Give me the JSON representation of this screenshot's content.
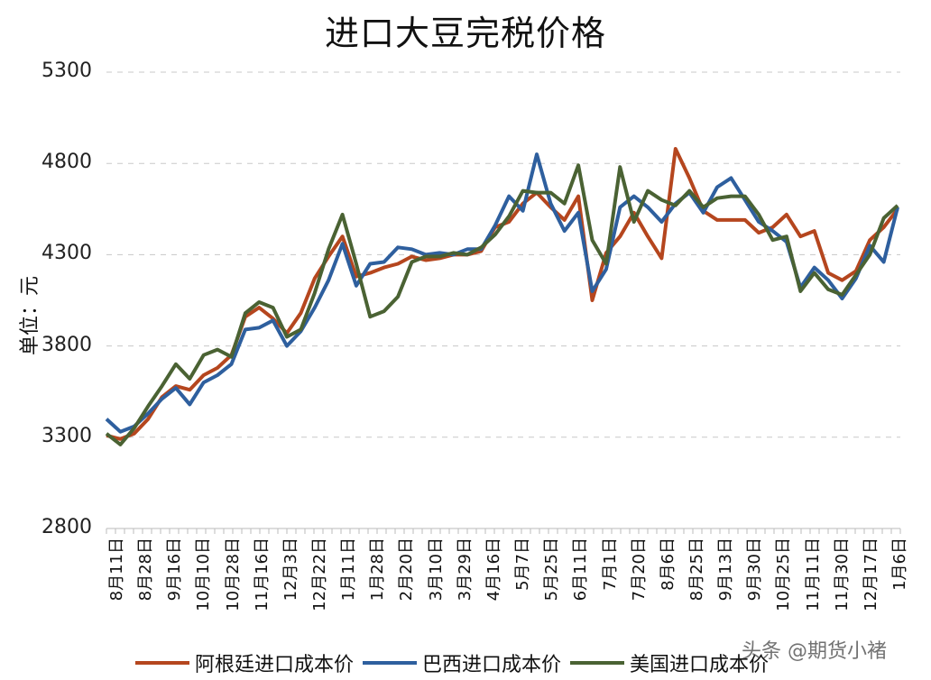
{
  "title": "进口大豆完税价格",
  "y_axis_label": "单位：元",
  "watermark": "头条 @期货小褚",
  "legend": [
    {
      "label": "阿根廷进口成本价",
      "color": "#b5461e"
    },
    {
      "label": "巴西进口成本价",
      "color": "#2e5f9e"
    },
    {
      "label": "美国进口成本价",
      "color": "#4a6233"
    }
  ],
  "chart_data": {
    "type": "line",
    "title": "进口大豆完税价格",
    "xlabel": "",
    "ylabel": "单位：元",
    "ylim": [
      2800,
      5300
    ],
    "yticks": [
      2800,
      3300,
      3800,
      4300,
      4800,
      5300
    ],
    "grid": "horizontal dashed",
    "legend_position": "bottom",
    "categories": [
      "8月11日",
      "8月28日",
      "9月16日",
      "10月10日",
      "10月28日",
      "11月16日",
      "12月3日",
      "12月22日",
      "1月11日",
      "1月28日",
      "2月20日",
      "3月10日",
      "3月29日",
      "4月16日",
      "5月7日",
      "5月25日",
      "6月11日",
      "7月1日",
      "7月20日",
      "8月6日",
      "8月25日",
      "9月13日",
      "9月30日",
      "10月25日",
      "11月11日",
      "11月30日",
      "12月17日",
      "1月6日"
    ],
    "series": [
      {
        "name": "阿根廷进口成本价",
        "color": "#b5461e",
        "values": [
          3310,
          3290,
          3320,
          3400,
          3520,
          3580,
          3560,
          3640,
          3680,
          3750,
          3960,
          4010,
          3950,
          3870,
          3980,
          4170,
          4290,
          4400,
          4180,
          4200,
          4230,
          4250,
          4290,
          4270,
          4280,
          4300,
          4300,
          4320,
          4450,
          4480,
          4580,
          4640,
          4560,
          4490,
          4620,
          4050,
          4310,
          4400,
          4530,
          4400,
          4280,
          4880,
          4720,
          4540,
          4490,
          4490,
          4490,
          4420,
          4450,
          4520,
          4400,
          4430,
          4200,
          4160,
          4210,
          4380,
          4450,
          4550
        ]
      },
      {
        "name": "巴西进口成本价",
        "color": "#2e5f9e",
        "values": [
          3400,
          3330,
          3360,
          3430,
          3510,
          3570,
          3480,
          3600,
          3640,
          3700,
          3890,
          3900,
          3940,
          3800,
          3880,
          4010,
          4160,
          4360,
          4130,
          4250,
          4260,
          4340,
          4330,
          4300,
          4310,
          4300,
          4330,
          4330,
          4460,
          4620,
          4540,
          4850,
          4580,
          4430,
          4530,
          4100,
          4220,
          4560,
          4620,
          4560,
          4480,
          4580,
          4640,
          4530,
          4670,
          4720,
          4600,
          4480,
          4430,
          4370,
          4120,
          4230,
          4160,
          4060,
          4170,
          4350,
          4260,
          4560
        ]
      },
      {
        "name": "美国进口成本价",
        "color": "#4a6233",
        "values": [
          3320,
          3260,
          3350,
          3470,
          3580,
          3700,
          3620,
          3750,
          3780,
          3740,
          3980,
          4040,
          4010,
          3850,
          3890,
          4090,
          4330,
          4520,
          4250,
          3960,
          3990,
          4070,
          4260,
          4290,
          4290,
          4310,
          4300,
          4340,
          4410,
          4510,
          4650,
          4640,
          4640,
          4580,
          4790,
          4380,
          4250,
          4780,
          4480,
          4650,
          4600,
          4570,
          4650,
          4560,
          4610,
          4620,
          4620,
          4520,
          4380,
          4400,
          4100,
          4200,
          4110,
          4080,
          4190,
          4300,
          4500,
          4570
        ]
      }
    ]
  }
}
